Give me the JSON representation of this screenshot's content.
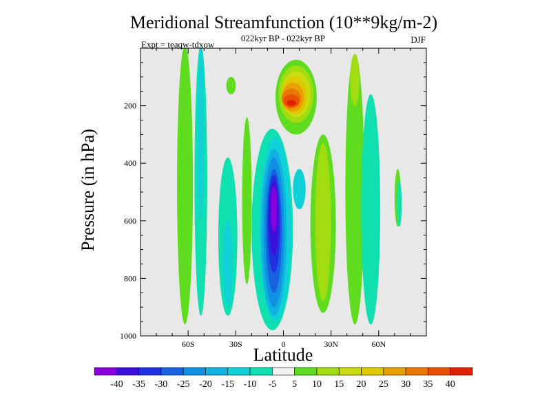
{
  "chart_data": {
    "type": "contour",
    "title": "Meridional Streamfunction (10**9kg/m-2)",
    "subtitle": "022kyr BP - 022kyr BP",
    "left_label": "Expt = teaqw-tdxow",
    "right_label": "DJF",
    "xlabel": "Latitude",
    "ylabel": "Pressure (in hPa)",
    "xlim": [
      -90,
      90
    ],
    "ylim": [
      1000,
      0
    ],
    "x_ticks": [
      -60,
      -30,
      0,
      30,
      60
    ],
    "x_tick_labels": [
      "60S",
      "30S",
      "0",
      "30N",
      "60N"
    ],
    "y_ticks": [
      200,
      400,
      600,
      800,
      1000
    ],
    "y_tick_labels": [
      "200",
      "400",
      "600",
      "800",
      "1000"
    ],
    "colorbar": {
      "colors": [
        "#8a00dc",
        "#3c10dc",
        "#2030e0",
        "#1860e0",
        "#1090e0",
        "#10b0e0",
        "#10d0d8",
        "#10e0b0",
        "#f0f0f0",
        "#60dc20",
        "#a0dc10",
        "#c8dc10",
        "#e0c800",
        "#e8a000",
        "#e87800",
        "#e85000",
        "#e02000"
      ],
      "labels": [
        "-40",
        "-35",
        "-30",
        "-25",
        "-20",
        "-15",
        "-10",
        "-5",
        "5",
        "10",
        "15",
        "20",
        "25",
        "30",
        "35",
        "40"
      ]
    },
    "features": [
      {
        "name": "southern-hadley-cell-core",
        "lat": -5,
        "pressure": 450,
        "value": -40
      },
      {
        "name": "northern-upper-cell",
        "lat": 5,
        "pressure": 200,
        "value": 35
      },
      {
        "name": "southern-midlatitude-band",
        "lat": -62,
        "pressure": 500,
        "value": 10
      },
      {
        "name": "southern-subpolar-band",
        "lat": -55,
        "pressure": 500,
        "value": -10
      },
      {
        "name": "southern-ferrel-band",
        "lat": -35,
        "pressure": 600,
        "value": -10
      },
      {
        "name": "northern-subtropical-band",
        "lat": 25,
        "pressure": 500,
        "value": 10
      },
      {
        "name": "northern-ferrel-band",
        "lat": 55,
        "pressure": 500,
        "value": -10
      },
      {
        "name": "northern-high-lat-band",
        "lat": 45,
        "pressure": 450,
        "value": 10
      }
    ]
  }
}
